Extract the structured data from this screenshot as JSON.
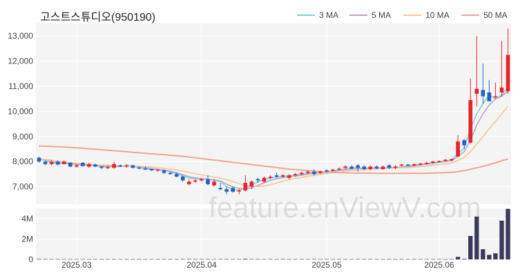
{
  "title": "고스트스튜디오(950190)",
  "watermark": "feature.enViewV.com",
  "legend": [
    {
      "label": "3 MA",
      "color": "#7fd3d3"
    },
    {
      "label": "5 MA",
      "color": "#b9a3c9"
    },
    {
      "label": "10 MA",
      "color": "#f3c79b"
    },
    {
      "label": "50 MA",
      "color": "#f2a594"
    }
  ],
  "colors": {
    "up": "#e8232a",
    "down": "#1f63c9",
    "volume": "#3a3a5c",
    "grid": "#ffffff",
    "panel": "#f4f4f4"
  },
  "chart_data": {
    "type": "candlestick",
    "price_ylim": [
      6300,
      13500
    ],
    "price_ticks": [
      7000,
      8000,
      9000,
      10000,
      11000,
      12000,
      13000
    ],
    "price_tick_labels": [
      "7,000",
      "8,000",
      "9,000",
      "10,000",
      "11,000",
      "12,000",
      "13,000"
    ],
    "volume_ylim": [
      0,
      5000000
    ],
    "volume_ticks": [
      0,
      2000000,
      4000000
    ],
    "volume_tick_labels": [
      "0",
      "2M",
      "4M"
    ],
    "x_labels": [
      {
        "label": "2025.03",
        "index": 6
      },
      {
        "label": "2025.04",
        "index": 26
      },
      {
        "label": "2025.05",
        "index": 46
      },
      {
        "label": "2025.06",
        "index": 64
      }
    ],
    "candles": [
      [
        8150,
        8200,
        7950,
        8000
      ],
      [
        8000,
        8050,
        7850,
        7900
      ],
      [
        7900,
        8050,
        7850,
        7980
      ],
      [
        8000,
        8050,
        7850,
        7880
      ],
      [
        7900,
        8050,
        7880,
        8000
      ],
      [
        7950,
        7980,
        7780,
        7800
      ],
      [
        7800,
        7900,
        7750,
        7850
      ],
      [
        7950,
        7980,
        7800,
        7820
      ],
      [
        7800,
        7950,
        7750,
        7900
      ],
      [
        7880,
        7920,
        7780,
        7800
      ],
      [
        7800,
        7830,
        7700,
        7750
      ],
      [
        7750,
        7850,
        7700,
        7780
      ],
      [
        7750,
        7980,
        7720,
        7900
      ],
      [
        7850,
        7880,
        7780,
        7800
      ],
      [
        7800,
        7900,
        7750,
        7850
      ],
      [
        7850,
        7870,
        7730,
        7750
      ],
      [
        7760,
        7820,
        7700,
        7720
      ],
      [
        7720,
        7800,
        7680,
        7700
      ],
      [
        7700,
        7720,
        7620,
        7650
      ],
      [
        7650,
        7700,
        7600,
        7680
      ],
      [
        7650,
        7680,
        7500,
        7550
      ],
      [
        7550,
        7600,
        7480,
        7500
      ],
      [
        7500,
        7550,
        7380,
        7400
      ],
      [
        7400,
        7450,
        7200,
        7250
      ],
      [
        7100,
        7300,
        7050,
        7200
      ],
      [
        7200,
        7300,
        7150,
        7250
      ],
      [
        7250,
        7350,
        7200,
        7300
      ],
      [
        7300,
        7450,
        7050,
        7100
      ],
      [
        7050,
        7300,
        7000,
        7200
      ],
      [
        6950,
        7150,
        6850,
        6900
      ],
      [
        6900,
        7000,
        6700,
        6800
      ],
      [
        6950,
        7000,
        6750,
        6800
      ],
      [
        6820,
        6900,
        6700,
        6850
      ],
      [
        6850,
        7450,
        6800,
        7150
      ],
      [
        7000,
        7250,
        6900,
        7200
      ],
      [
        7300,
        7350,
        7150,
        7250
      ],
      [
        7200,
        7400,
        7150,
        7350
      ],
      [
        7350,
        7450,
        7300,
        7400
      ],
      [
        7450,
        7550,
        7350,
        7400
      ],
      [
        7400,
        7500,
        7350,
        7450
      ],
      [
        7350,
        7500,
        7300,
        7450
      ],
      [
        7450,
        7550,
        7400,
        7500
      ],
      [
        7500,
        7600,
        7450,
        7550
      ],
      [
        7550,
        7650,
        7500,
        7600
      ],
      [
        7600,
        7700,
        7450,
        7500
      ],
      [
        7550,
        7650,
        7500,
        7600
      ],
      [
        7650,
        7700,
        7550,
        7600
      ],
      [
        7650,
        7720,
        7600,
        7680
      ],
      [
        7700,
        7780,
        7650,
        7720
      ],
      [
        7750,
        7850,
        7700,
        7800
      ],
      [
        7800,
        7850,
        7700,
        7720
      ],
      [
        7850,
        7900,
        7600,
        7750
      ],
      [
        7800,
        7850,
        7650,
        7700
      ],
      [
        7700,
        7850,
        7650,
        7800
      ],
      [
        7800,
        7850,
        7700,
        7720
      ],
      [
        7700,
        7850,
        7680,
        7800
      ],
      [
        7850,
        7900,
        7700,
        7750
      ],
      [
        7750,
        7850,
        7700,
        7800
      ],
      [
        7850,
        7900,
        7800,
        7880
      ],
      [
        7880,
        7900,
        7820,
        7850
      ],
      [
        7850,
        7920,
        7800,
        7900
      ],
      [
        7900,
        7950,
        7850,
        7920
      ],
      [
        7920,
        8000,
        7880,
        7950
      ],
      [
        7950,
        8030,
        7900,
        8000
      ],
      [
        8000,
        8050,
        7950,
        8020
      ],
      [
        8050,
        8100,
        8000,
        8070
      ],
      [
        8050,
        8120,
        8000,
        8100
      ],
      [
        8200,
        9050,
        8200,
        8800
      ],
      [
        8850,
        8900,
        8500,
        8650
      ],
      [
        8750,
        11300,
        8700,
        10450
      ],
      [
        10700,
        13000,
        10200,
        10900
      ],
      [
        10850,
        11900,
        10300,
        10600
      ],
      [
        10750,
        11250,
        10400,
        10400
      ],
      [
        10600,
        11150,
        10500,
        10600
      ],
      [
        10750,
        12800,
        10600,
        10950
      ],
      [
        10800,
        13300,
        10700,
        12250
      ]
    ],
    "volume": [
      50000,
      40000,
      30000,
      30000,
      30000,
      30000,
      25000,
      30000,
      25000,
      25000,
      25000,
      30000,
      25000,
      25000,
      25000,
      25000,
      25000,
      25000,
      25000,
      25000,
      25000,
      25000,
      25000,
      40000,
      50000,
      30000,
      30000,
      40000,
      30000,
      40000,
      40000,
      35000,
      30000,
      60000,
      40000,
      30000,
      30000,
      30000,
      30000,
      30000,
      30000,
      30000,
      30000,
      30000,
      30000,
      30000,
      30000,
      30000,
      30000,
      30000,
      30000,
      40000,
      30000,
      30000,
      30000,
      30000,
      30000,
      30000,
      30000,
      30000,
      30000,
      30000,
      30000,
      30000,
      30000,
      30000,
      30000,
      250000,
      60000,
      2300000,
      4200000,
      1000000,
      450000,
      600000,
      3800000,
      4950000
    ],
    "ma3": [
      8100,
      8050,
      7950,
      7930,
      7920,
      7910,
      7880,
      7850,
      7850,
      7830,
      7800,
      7790,
      7810,
      7820,
      7830,
      7820,
      7760,
      7720,
      7690,
      7680,
      7650,
      7600,
      7510,
      7420,
      7350,
      7320,
      7300,
      7300,
      7250,
      7200,
      7000,
      6900,
      6850,
      6950,
      7050,
      7200,
      7280,
      7350,
      7380,
      7420,
      7440,
      7460,
      7500,
      7550,
      7560,
      7560,
      7590,
      7630,
      7670,
      7710,
      7740,
      7760,
      7720,
      7740,
      7740,
      7740,
      7760,
      7760,
      7790,
      7830,
      7870,
      7890,
      7920,
      7960,
      7990,
      8030,
      8060,
      8330,
      8520,
      9300,
      9900,
      10300,
      10650,
      10500,
      10650,
      10950
    ],
    "ma5": [
      8100,
      8070,
      8000,
      7960,
      7940,
      7920,
      7900,
      7880,
      7860,
      7840,
      7820,
      7810,
      7800,
      7810,
      7820,
      7820,
      7790,
      7760,
      7720,
      7690,
      7660,
      7620,
      7560,
      7480,
      7400,
      7350,
      7310,
      7290,
      7270,
      7230,
      7100,
      6990,
      6930,
      6900,
      6950,
      7050,
      7150,
      7260,
      7320,
      7360,
      7400,
      7430,
      7460,
      7500,
      7530,
      7550,
      7570,
      7600,
      7640,
      7670,
      7700,
      7720,
      7730,
      7740,
      7740,
      7740,
      7750,
      7760,
      7770,
      7800,
      7830,
      7860,
      7900,
      7930,
      7970,
      8000,
      8040,
      8200,
      8400,
      8850,
      9450,
      9900,
      10250,
      10500,
      10600,
      10800
    ],
    "ma10": [
      8100,
      8080,
      8060,
      8020,
      7990,
      7960,
      7930,
      7910,
      7890,
      7870,
      7860,
      7850,
      7840,
      7830,
      7830,
      7820,
      7810,
      7800,
      7780,
      7760,
      7730,
      7700,
      7670,
      7620,
      7570,
      7520,
      7470,
      7420,
      7380,
      7340,
      7280,
      7200,
      7120,
      7060,
      7020,
      7000,
      7020,
      7080,
      7150,
      7220,
      7280,
      7330,
      7370,
      7410,
      7450,
      7490,
      7520,
      7550,
      7580,
      7610,
      7640,
      7660,
      7680,
      7700,
      7710,
      7720,
      7730,
      7740,
      7750,
      7760,
      7780,
      7800,
      7820,
      7850,
      7880,
      7910,
      7940,
      8040,
      8160,
      8400,
      8700,
      9000,
      9300,
      9600,
      9900,
      10200
    ],
    "ma50": [
      8620,
      8610,
      8600,
      8590,
      8580,
      8565,
      8550,
      8530,
      8510,
      8490,
      8470,
      8450,
      8430,
      8410,
      8390,
      8370,
      8350,
      8330,
      8310,
      8290,
      8270,
      8250,
      8230,
      8210,
      8180,
      8150,
      8120,
      8090,
      8060,
      8030,
      8000,
      7970,
      7940,
      7910,
      7880,
      7850,
      7820,
      7790,
      7760,
      7730,
      7700,
      7680,
      7660,
      7640,
      7620,
      7600,
      7580,
      7570,
      7560,
      7550,
      7545,
      7540,
      7538,
      7536,
      7534,
      7532,
      7530,
      7530,
      7530,
      7530,
      7530,
      7530,
      7535,
      7540,
      7550,
      7560,
      7570,
      7600,
      7640,
      7690,
      7750,
      7810,
      7880,
      7950,
      8030,
      8100
    ]
  }
}
